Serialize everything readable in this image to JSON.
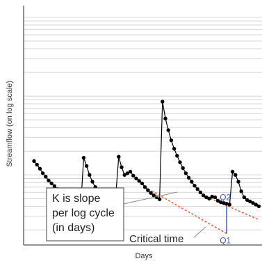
{
  "chart_data": {
    "type": "line",
    "xlabel": "Days",
    "ylabel": "Streamflow (on log scale)",
    "y_scale": "log",
    "grid": {
      "horizontal": true,
      "vertical": false
    },
    "series": [
      {
        "values": [
          [
            0,
            1.5
          ],
          [
            1,
            1.35
          ],
          [
            2,
            1.2
          ],
          [
            3,
            1.05
          ],
          [
            4,
            0.95
          ],
          [
            5,
            0.85
          ],
          [
            6,
            0.78
          ],
          [
            7,
            0.72
          ],
          [
            8,
            0.66
          ],
          [
            9,
            0.62
          ],
          [
            10,
            0.58
          ],
          [
            11,
            0.54
          ],
          [
            12,
            0.51
          ],
          [
            13,
            0.48
          ],
          [
            14,
            0.45
          ],
          [
            15,
            0.43
          ],
          [
            16,
            0.41
          ],
          [
            17,
            1.65
          ],
          [
            18,
            1.3
          ],
          [
            19,
            1.0
          ],
          [
            20,
            0.82
          ],
          [
            21,
            0.7
          ],
          [
            22,
            0.62
          ],
          [
            23,
            0.56
          ],
          [
            24,
            0.51
          ],
          [
            25,
            0.47
          ],
          [
            26,
            0.44
          ],
          [
            27,
            0.42
          ],
          [
            28,
            0.55
          ],
          [
            29,
            1.7
          ],
          [
            30,
            1.25
          ],
          [
            31,
            1.0
          ],
          [
            32,
            1.05
          ],
          [
            33,
            1.1
          ],
          [
            34,
            0.98
          ],
          [
            35,
            0.9
          ],
          [
            36,
            0.84
          ],
          [
            37,
            0.78
          ],
          [
            38,
            0.7
          ],
          [
            39,
            0.64
          ],
          [
            40,
            0.59
          ],
          [
            41,
            0.55
          ],
          [
            42,
            0.52
          ],
          [
            43,
            0.49
          ],
          [
            44,
            8.5
          ],
          [
            45,
            5.2
          ],
          [
            46,
            3.7
          ],
          [
            47,
            2.75
          ],
          [
            48,
            2.15
          ],
          [
            49,
            1.75
          ],
          [
            50,
            1.45
          ],
          [
            51,
            1.22
          ],
          [
            52,
            1.05
          ],
          [
            53,
            0.92
          ],
          [
            54,
            0.82
          ],
          [
            55,
            0.73
          ],
          [
            56,
            0.66
          ],
          [
            57,
            0.6
          ],
          [
            58,
            0.55
          ],
          [
            59,
            0.52
          ],
          [
            60,
            0.5
          ],
          [
            61,
            0.53
          ],
          [
            62,
            0.52
          ],
          [
            63,
            0.47
          ],
          [
            64,
            0.45
          ],
          [
            65,
            0.44
          ],
          [
            66,
            0.43
          ],
          [
            67,
            0.42
          ],
          [
            68,
            1.1
          ],
          [
            69,
            1.0
          ],
          [
            70,
            0.82
          ],
          [
            71,
            0.62
          ],
          [
            72,
            0.52
          ],
          [
            73,
            0.48
          ],
          [
            74,
            0.46
          ],
          [
            75,
            0.44
          ],
          [
            76,
            0.42
          ],
          [
            77,
            0.4
          ]
        ]
      }
    ],
    "recession_lines": [
      {
        "from": [
          58,
          0.55
        ],
        "to": [
          77,
          0.27
        ]
      },
      {
        "from": [
          38,
          0.7
        ],
        "to": [
          66,
          0.18
        ]
      }
    ],
    "annotations": {
      "q2_label": "Q2",
      "q1_label": "Q1",
      "critical_time": "Critical time",
      "k_text": [
        "K is slope",
        "per log cycle",
        "(in days)"
      ]
    },
    "colors": {
      "series": "#000000",
      "recession": "#e8603c",
      "q_marker": "#4a5fc1",
      "grid": "#d4d4d4",
      "axis": "#555555",
      "leader": "#8a8a8a"
    }
  }
}
